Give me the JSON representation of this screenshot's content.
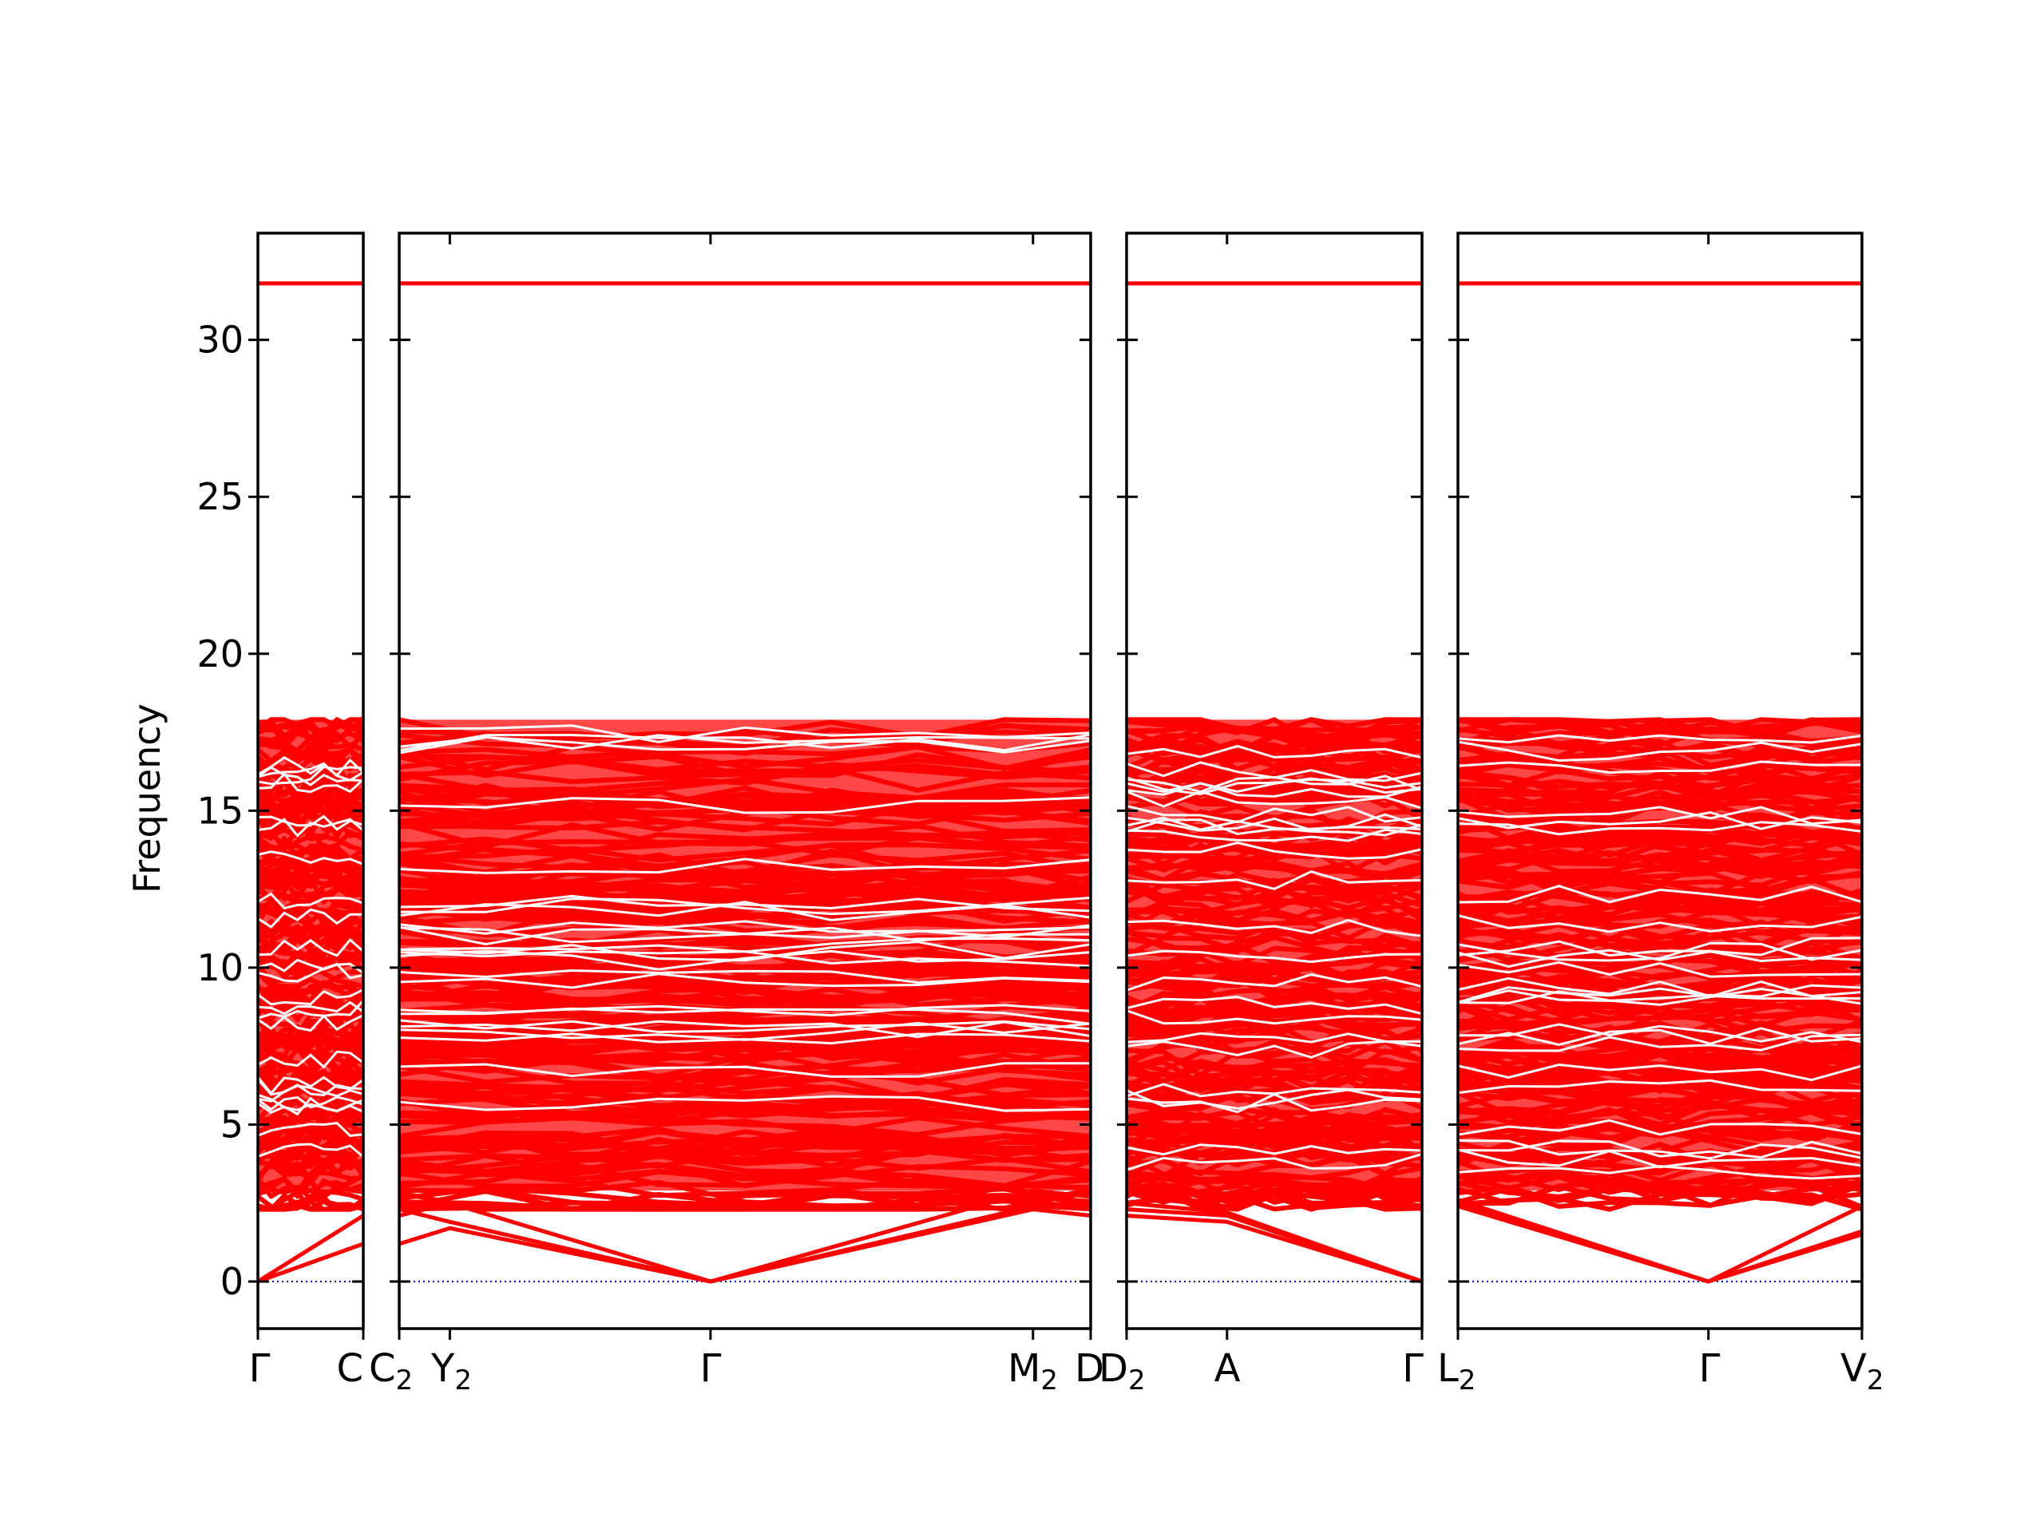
{
  "chart_data": {
    "type": "line",
    "title": "",
    "xlabel": "",
    "ylabel": "Frequency",
    "ylim": [
      -1.5,
      33.4
    ],
    "yticks": [
      0,
      5,
      10,
      15,
      20,
      25,
      30
    ],
    "grid": false,
    "legend": "none",
    "colors": {
      "bands": "#ff0000",
      "zero_line": "#0000cc",
      "axes": "#000000"
    },
    "panels": [
      {
        "name": "panel-1",
        "kpoints": [
          "Γ",
          "C"
        ]
      },
      {
        "name": "panel-2",
        "kpoints": [
          "C2",
          "Y2",
          "Γ",
          "M2",
          "D"
        ],
        "kpoint_x": [
          0,
          0.0732,
          0.4502,
          0.9166,
          1.0
        ]
      },
      {
        "name": "panel-3",
        "kpoints": [
          "D2",
          "A",
          "Γ"
        ]
      },
      {
        "name": "panel-4",
        "kpoints": [
          "L2",
          "Γ",
          "V2"
        ]
      }
    ],
    "kpoint_labels": [
      {
        "text": "Γ",
        "sub": ""
      },
      {
        "text": "C",
        "sub": ""
      },
      {
        "text": "C",
        "sub": "2"
      },
      {
        "text": "Y",
        "sub": "2"
      },
      {
        "text": "Γ",
        "sub": ""
      },
      {
        "text": "M",
        "sub": "2"
      },
      {
        "text": "D",
        "sub": ""
      },
      {
        "text": "D",
        "sub": "2"
      },
      {
        "text": "A",
        "sub": ""
      },
      {
        "text": "Γ",
        "sub": ""
      },
      {
        "text": "L",
        "sub": "2"
      },
      {
        "text": "Γ",
        "sub": ""
      },
      {
        "text": "V",
        "sub": "2"
      }
    ],
    "band_summary": {
      "acoustic_branches_at_gamma": 0,
      "low_band_range": [
        2.3,
        17.9
      ],
      "top_band": 31.8,
      "gap": [
        17.9,
        31.8
      ]
    },
    "series": [
      {
        "panel": 0,
        "x": [
          0,
          1
        ],
        "y": [
          0,
          2.1
        ]
      },
      {
        "panel": 0,
        "x": [
          0,
          1
        ],
        "y": [
          0,
          1.2
        ]
      },
      {
        "panel": 1,
        "x": [
          0,
          0.0732,
          0.4502,
          0.9166,
          1.0
        ],
        "y": [
          1.2,
          1.7,
          0,
          2.3,
          2.1
        ]
      },
      {
        "panel": 1,
        "x": [
          0,
          0.0732,
          0.4502,
          0.9166,
          1.0
        ],
        "y": [
          2.1,
          2.5,
          0,
          2.4,
          2.3
        ]
      },
      {
        "panel": 1,
        "x": [
          0,
          0.0732,
          0.4502,
          0.9166,
          1.0
        ],
        "y": [
          2.3,
          1.9,
          0,
          2.9,
          2.7
        ]
      },
      {
        "panel": 2,
        "x": [
          0,
          0.34,
          1
        ],
        "y": [
          2.1,
          1.9,
          0
        ]
      },
      {
        "panel": 2,
        "x": [
          0,
          0.34,
          1
        ],
        "y": [
          2.3,
          2.1,
          0
        ]
      },
      {
        "panel": 2,
        "x": [
          0,
          0.34,
          1
        ],
        "y": [
          2.5,
          2.2,
          0
        ]
      },
      {
        "panel": 3,
        "x": [
          0,
          0.62,
          1
        ],
        "y": [
          2.5,
          0,
          1.6
        ]
      },
      {
        "panel": 3,
        "x": [
          0,
          0.62,
          1
        ],
        "y": [
          2.4,
          0,
          1.5
        ]
      },
      {
        "panel": 3,
        "x": [
          0,
          0.62,
          1
        ],
        "y": [
          2.6,
          0,
          2.4
        ]
      }
    ]
  }
}
